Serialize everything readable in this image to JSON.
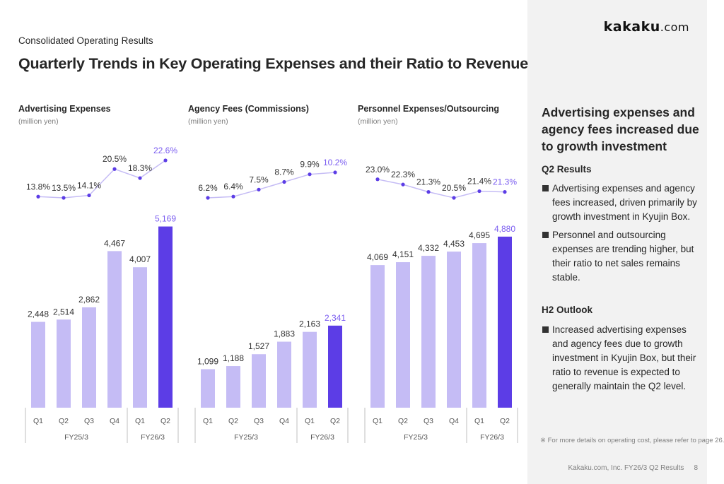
{
  "header": {
    "section": "Consolidated Operating Results",
    "title": "Quarterly Trends in Key Operating Expenses and their Ratio to Revenue",
    "logo_main": "kakaku",
    "logo_suffix": ".com"
  },
  "colors": {
    "bar_past": "#c5bcf5",
    "bar_current": "#5c3de6",
    "line": "#c5bcf5",
    "point": "#5c3de6",
    "highlight_text": "#7a5cf0",
    "text": "#333333",
    "axis": "#bfbfbf"
  },
  "chart_data": [
    {
      "type": "bar",
      "title": "Advertising Expenses",
      "unit": "(million yen)",
      "categories": [
        "Q1",
        "Q2",
        "Q3",
        "Q4",
        "Q1",
        "Q2"
      ],
      "groups": [
        {
          "label": "FY25/3",
          "span": 4
        },
        {
          "label": "FY26/3",
          "span": 2
        }
      ],
      "values": [
        2448,
        2514,
        2862,
        4467,
        4007,
        5169
      ],
      "value_labels": [
        "2,448",
        "2,514",
        "2,862",
        "4,467",
        "4,007",
        "5,169"
      ],
      "ratio_series": {
        "name": "Ratio to revenue",
        "values": [
          13.8,
          13.5,
          14.1,
          20.5,
          18.3,
          22.6
        ],
        "labels": [
          "13.8%",
          "13.5%",
          "14.1%",
          "20.5%",
          "18.3%",
          "22.6%"
        ]
      },
      "highlight_index": 5
    },
    {
      "type": "bar",
      "title": "Agency Fees (Commissions)",
      "unit": "(million yen)",
      "categories": [
        "Q1",
        "Q2",
        "Q3",
        "Q4",
        "Q1",
        "Q2"
      ],
      "groups": [
        {
          "label": "FY25/3",
          "span": 4
        },
        {
          "label": "FY26/3",
          "span": 2
        }
      ],
      "values": [
        1099,
        1188,
        1527,
        1883,
        2163,
        2341
      ],
      "value_labels": [
        "1,099",
        "1,188",
        "1,527",
        "1,883",
        "2,163",
        "2,341"
      ],
      "ratio_series": {
        "name": "Ratio to revenue",
        "values": [
          6.2,
          6.4,
          7.5,
          8.7,
          9.9,
          10.2
        ],
        "labels": [
          "6.2%",
          "6.4%",
          "7.5%",
          "8.7%",
          "9.9%",
          "10.2%"
        ]
      },
      "highlight_index": 5
    },
    {
      "type": "bar",
      "title": "Personnel Expenses/Outsourcing",
      "unit": "(million yen)",
      "categories": [
        "Q1",
        "Q2",
        "Q3",
        "Q4",
        "Q1",
        "Q2"
      ],
      "groups": [
        {
          "label": "FY25/3",
          "span": 4
        },
        {
          "label": "FY26/3",
          "span": 2
        }
      ],
      "values": [
        4069,
        4151,
        4332,
        4453,
        4695,
        4880
      ],
      "value_labels": [
        "4,069",
        "4,151",
        "4,332",
        "4,453",
        "4,695",
        "4,880"
      ],
      "ratio_series": {
        "name": "Ratio to revenue",
        "values": [
          23.0,
          22.3,
          21.3,
          20.5,
          21.4,
          21.3
        ],
        "labels": [
          "23.0%",
          "22.3%",
          "21.3%",
          "20.5%",
          "21.4%",
          "21.3%"
        ]
      },
      "highlight_index": 5
    }
  ],
  "insights": {
    "title": "Advertising expenses and agency fees increased due to growth investment",
    "q2_heading": "Q2 Results",
    "q2_bullets": [
      "Advertising expenses and agency fees increased, driven primarily by growth investment in Kyujin Box.",
      "Personnel and outsourcing expenses are trending higher, but their ratio to net sales remains stable."
    ],
    "h2_heading": "H2 Outlook",
    "h2_bullets": [
      "Increased advertising expenses and agency fees due to growth investment in Kyujin Box, but their ratio to revenue is expected to generally maintain the Q2 level."
    ],
    "footnote": "※ For more details on operating cost, please refer to page 26."
  },
  "footer": {
    "text": "Kakaku.com, Inc. FY26/3 Q2 Results",
    "page": "8"
  }
}
